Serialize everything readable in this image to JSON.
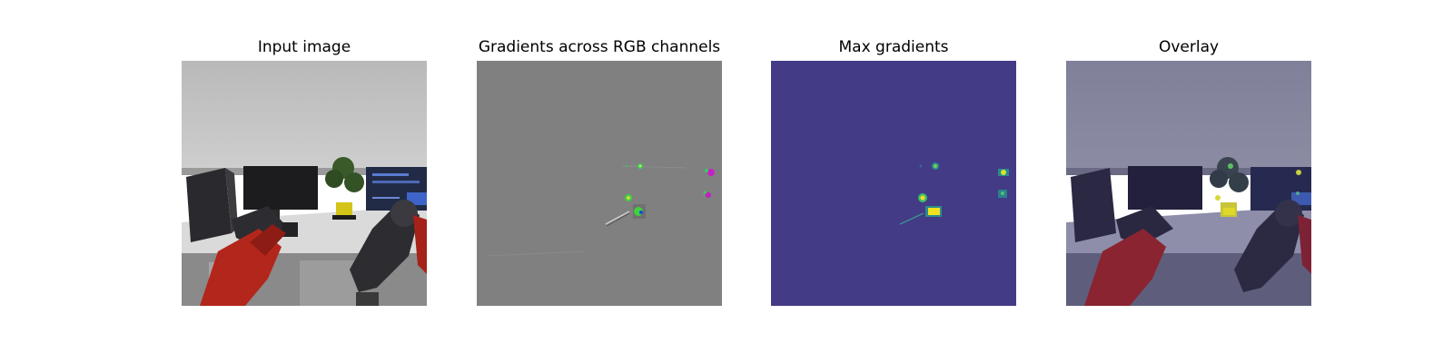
{
  "panels": [
    {
      "title": "Input image"
    },
    {
      "title": "Gradients across RGB channels"
    },
    {
      "title": "Max gradients"
    },
    {
      "title": "Overlay"
    }
  ],
  "colors": {
    "background": "#ffffff",
    "wall": "#c2c2c2",
    "desk": "#d8d8d8",
    "robot_red": "#b22418",
    "robot_dark": "#2e2e33",
    "gradient_gray": "#808080",
    "viridis_dark": "#433b86",
    "viridis_green": "#3bc36a",
    "viridis_yellow": "#f0e020",
    "magenta": "#d020c8",
    "overlay_tint": "#50508a"
  }
}
